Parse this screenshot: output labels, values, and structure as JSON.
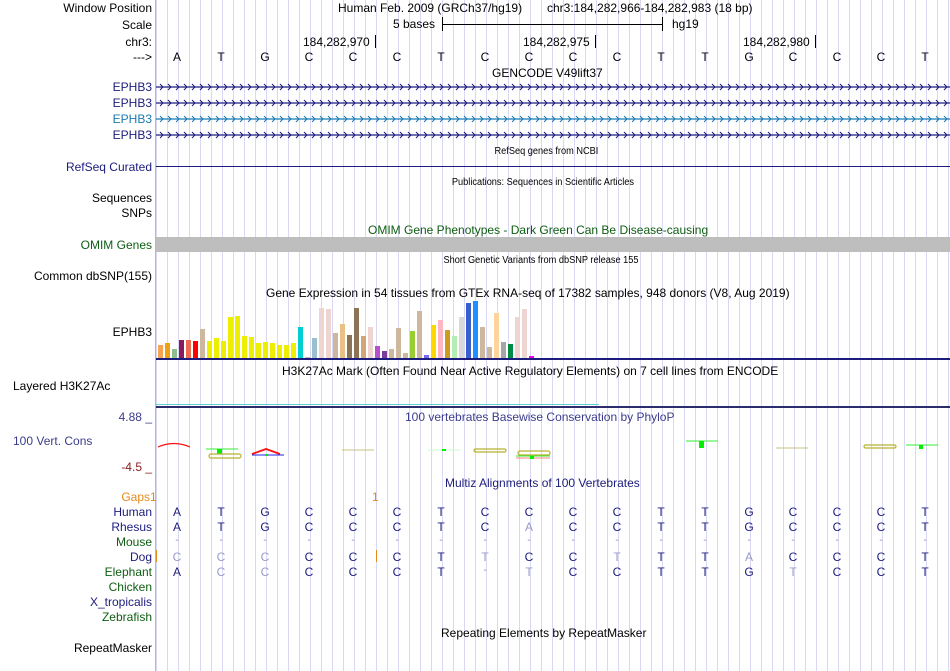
{
  "header": {
    "window_position_label": "Window Position",
    "assembly": "Human Feb. 2009 (GRCh37/hg19)",
    "position": "chr3:184,282,966-184,282,983 (18 bp)",
    "scale_label": "Scale",
    "scale_text": "5 bases",
    "scale_db": "hg19",
    "chrom_label": "chr3:",
    "strand_label": "--->",
    "ticks": [
      "184,282,970",
      "184,282,975",
      "184,282,980"
    ]
  },
  "sequence": [
    "A",
    "T",
    "G",
    "C",
    "C",
    "C",
    "T",
    "C",
    "C",
    "C",
    "C",
    "T",
    "T",
    "G",
    "C",
    "C",
    "C",
    "T"
  ],
  "tracks": {
    "gencode": {
      "title": "GENCODE V49lift37",
      "items": [
        {
          "label": "EPHB3",
          "color": "#1c1c7c"
        },
        {
          "label": "EPHB3",
          "color": "#1c1c7c"
        },
        {
          "label": "EPHB3",
          "color": "#1a7ab0"
        },
        {
          "label": "EPHB3",
          "color": "#1c1c7c"
        }
      ]
    },
    "refseq": {
      "label": "RefSeq Curated",
      "title": "RefSeq genes from NCBI"
    },
    "pubs": {
      "label": "Sequences",
      "title": "Publications: Sequences in Scientific Articles"
    },
    "snps_label": "SNPs",
    "omim": {
      "label": "OMIM Genes",
      "title": "OMIM Gene Phenotypes - Dark Green Can Be Disease-causing"
    },
    "dbsnp": {
      "label": "Common dbSNP(155)",
      "title": "Short Genetic Variants from dbSNP release 155"
    },
    "gtex": {
      "label": "EPHB3",
      "title": "Gene Expression in 54 tissues from GTEx RNA-seq of 17382 samples, 948 donors (V8, Aug 2019)"
    },
    "h3k27ac": {
      "label": "Layered H3K27Ac",
      "title": "H3K27Ac Mark (Often Found Near Active Regulatory Elements) on 7 cell lines from ENCODE"
    },
    "phylop": {
      "label": "100 Vert. Cons",
      "title": "100 vertebrates Basewise Conservation by PhyloP",
      "max": "4.88 _",
      "min": "-4.5 _"
    },
    "multiz": {
      "title": "Multiz Alignments of 100 Vertebrates",
      "gaps_label": "Gaps",
      "gaps_marks": [
        "1",
        "1"
      ],
      "species": [
        {
          "name": "Human",
          "color": "#1c1c7c",
          "bases": [
            "A",
            "T",
            "G",
            "C",
            "C",
            "C",
            "T",
            "C",
            "C",
            "C",
            "C",
            "T",
            "T",
            "G",
            "C",
            "C",
            "C",
            "T"
          ]
        },
        {
          "name": "Rhesus",
          "color": "#1c1c7c",
          "bases": [
            "A",
            "T",
            "G",
            "C",
            "C",
            "C",
            "T",
            "C",
            "A",
            "C",
            "C",
            "T",
            "T",
            "G",
            "C",
            "C",
            "C",
            "T"
          ]
        },
        {
          "name": "Mouse",
          "color": "#0e5e12",
          "bases": [
            "-",
            "-",
            "-",
            "-",
            "-",
            "-",
            "-",
            "-",
            "-",
            "-",
            "-",
            "-",
            "-",
            "-",
            "-",
            "-",
            "-",
            "-"
          ]
        },
        {
          "name": "Dog",
          "color": "#1c1c7c",
          "bases": [
            "C",
            "C",
            "C",
            "C",
            "C",
            "C",
            "T",
            "T",
            "C",
            "C",
            "T",
            "T",
            "T",
            "A",
            "C",
            "C",
            "C",
            "T"
          ]
        },
        {
          "name": "Elephant",
          "color": "#0e5e12",
          "bases": [
            "A",
            "C",
            "C",
            "C",
            "C",
            "C",
            "T",
            "-",
            "T",
            "C",
            "C",
            "T",
            "T",
            "G",
            "T",
            "C",
            "C",
            "T"
          ]
        },
        {
          "name": "Chicken",
          "color": "#0e5e12",
          "bases": []
        },
        {
          "name": "X_tropicalis",
          "color": "#1c1c7c",
          "bases": []
        },
        {
          "name": "Zebrafish",
          "color": "#0e5e12",
          "bases": []
        }
      ]
    },
    "repeatmasker": {
      "label": "RepeatMasker",
      "title": "Repeating Elements by RepeatMasker"
    }
  },
  "gtex_bars": [
    {
      "v": 0.26,
      "c": "#f7a450"
    },
    {
      "v": 0.3,
      "c": "#f0a010"
    },
    {
      "v": 0.17,
      "c": "#8fbc8f"
    },
    {
      "v": 0.36,
      "c": "#8b1a5c"
    },
    {
      "v": 0.36,
      "c": "#ee6a50"
    },
    {
      "v": 0.34,
      "c": "#ff0000"
    },
    {
      "v": 0.58,
      "c": "#cdb79e"
    },
    {
      "v": 0.34,
      "c": "#eeee00"
    },
    {
      "v": 0.4,
      "c": "#eeee00"
    },
    {
      "v": 0.34,
      "c": "#eeee00"
    },
    {
      "v": 0.82,
      "c": "#eeee00"
    },
    {
      "v": 0.84,
      "c": "#eeee00"
    },
    {
      "v": 0.44,
      "c": "#eeee00"
    },
    {
      "v": 0.42,
      "c": "#eeee00"
    },
    {
      "v": 0.3,
      "c": "#eeee00"
    },
    {
      "v": 0.32,
      "c": "#eeee00"
    },
    {
      "v": 0.3,
      "c": "#eeee00"
    },
    {
      "v": 0.26,
      "c": "#eeee00"
    },
    {
      "v": 0.26,
      "c": "#eeee00"
    },
    {
      "v": 0.3,
      "c": "#eeee00"
    },
    {
      "v": 0.62,
      "c": "#00ced1"
    },
    {
      "v": 0.02,
      "c": "#cdb79e"
    },
    {
      "v": 0.4,
      "c": "#9ac0cd"
    },
    {
      "v": 1.0,
      "c": "#eed5d2"
    },
    {
      "v": 0.98,
      "c": "#eed5d2"
    },
    {
      "v": 0.5,
      "c": "#cdb79e"
    },
    {
      "v": 0.67,
      "c": "#e9c086"
    },
    {
      "v": 0.46,
      "c": "#8b7355"
    },
    {
      "v": 1.0,
      "c": "#8b7355"
    },
    {
      "v": 0.43,
      "c": "#d2a679"
    },
    {
      "v": 0.61,
      "c": "#eed5d2"
    },
    {
      "v": 0.24,
      "c": "#b452cd"
    },
    {
      "v": 0.14,
      "c": "#7d3c98"
    },
    {
      "v": 0.18,
      "c": "#cdb79e"
    },
    {
      "v": 0.6,
      "c": "#cdb79e"
    },
    {
      "v": 0.1,
      "c": "#cdb79e"
    },
    {
      "v": 0.53,
      "c": "#9acd32"
    },
    {
      "v": 0.94,
      "c": "#cdb79e"
    },
    {
      "v": 0.06,
      "c": "#7b68ee"
    },
    {
      "v": 0.66,
      "c": "#ffd700"
    },
    {
      "v": 0.76,
      "c": "#ffb6c1"
    },
    {
      "v": 0.55,
      "c": "#cd9b1d"
    },
    {
      "v": 0.43,
      "c": "#b4eeb4"
    },
    {
      "v": 0.82,
      "c": "#d9d9d9"
    },
    {
      "v": 1.1,
      "c": "#3a5fcd"
    },
    {
      "v": 1.15,
      "c": "#1e90ff"
    },
    {
      "v": 0.61,
      "c": "#cdb79e"
    },
    {
      "v": 0.22,
      "c": "#cdb79e"
    },
    {
      "v": 0.9,
      "c": "#ffd39b"
    },
    {
      "v": 0.32,
      "c": "#a6a6a6"
    },
    {
      "v": 0.28,
      "c": "#008b45"
    },
    {
      "v": 0.82,
      "c": "#eed5d2"
    },
    {
      "v": 0.98,
      "c": "#eed5d2"
    },
    {
      "v": 0.04,
      "c": "#ee00ee"
    }
  ]
}
